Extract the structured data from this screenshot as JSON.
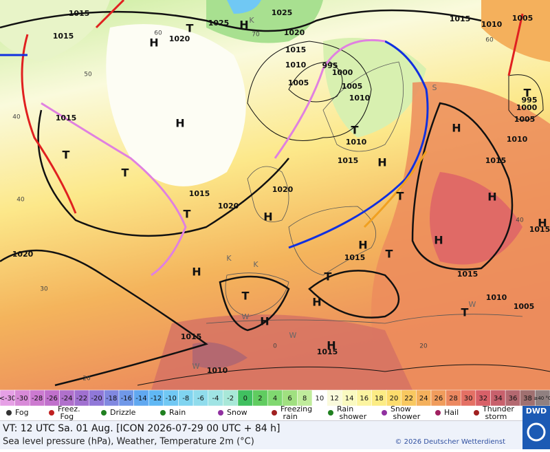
{
  "map": {
    "isobar_labels": [
      1015,
      1015,
      1015,
      1020,
      1025,
      1025,
      1020,
      1020,
      1015,
      1010,
      1005,
      1000,
      1005,
      1010,
      1010,
      1015,
      1020,
      1015,
      1020,
      1015,
      1015,
      1010,
      1005,
      1015,
      1015,
      1010,
      1015,
      1010,
      1005,
      995,
      1000,
      1005,
      1010,
      1015,
      1015,
      995
    ],
    "centers": [
      "H",
      "T",
      "H",
      "H",
      "T",
      "T",
      "T",
      "H",
      "T",
      "H",
      "T",
      "H",
      "H",
      "H",
      "H",
      "T",
      "T",
      "T",
      "H",
      "H",
      "H",
      "H",
      "T",
      "T",
      "H"
    ],
    "latitude_labels": [
      60,
      70,
      50,
      40,
      40,
      30,
      20,
      0,
      20,
      40,
      60
    ],
    "symbols": [
      "K",
      "K",
      "K",
      "W",
      "W",
      "W",
      "W",
      "S"
    ]
  },
  "legend": {
    "scale": [
      {
        "label": "<-30",
        "color": "#e6a0e6"
      },
      {
        "label": "-30",
        "color": "#d88ad8"
      },
      {
        "label": "-28",
        "color": "#cc7ad0"
      },
      {
        "label": "-26",
        "color": "#c070cc"
      },
      {
        "label": "-24",
        "color": "#b070cc"
      },
      {
        "label": "-22",
        "color": "#a070d0"
      },
      {
        "label": "-20",
        "color": "#9078d8"
      },
      {
        "label": "-18",
        "color": "#8088e0"
      },
      {
        "label": "-16",
        "color": "#7098e8"
      },
      {
        "label": "-14",
        "color": "#60a8f0"
      },
      {
        "label": "-12",
        "color": "#60b8f4"
      },
      {
        "label": "-10",
        "color": "#70c8f4"
      },
      {
        "label": "-8",
        "color": "#80d4f0"
      },
      {
        "label": "-6",
        "color": "#90dcec"
      },
      {
        "label": "-4",
        "color": "#a0e4e4"
      },
      {
        "label": "-2",
        "color": "#a8e8d8"
      },
      {
        "label": "0",
        "color": "#40c060"
      },
      {
        "label": "2",
        "color": "#60cc60"
      },
      {
        "label": "4",
        "color": "#80d870"
      },
      {
        "label": "6",
        "color": "#a0e080"
      },
      {
        "label": "8",
        "color": "#c0ec9c"
      },
      {
        "label": "10",
        "color": "#ffffff"
      },
      {
        "label": "12",
        "color": "#fafadc"
      },
      {
        "label": "14",
        "color": "#fafac0"
      },
      {
        "label": "16",
        "color": "#fcf4a0"
      },
      {
        "label": "18",
        "color": "#fcec84"
      },
      {
        "label": "20",
        "color": "#fcdc6c"
      },
      {
        "label": "22",
        "color": "#f8c860"
      },
      {
        "label": "24",
        "color": "#f4b05c"
      },
      {
        "label": "26",
        "color": "#f09c5c"
      },
      {
        "label": "28",
        "color": "#ec8860"
      },
      {
        "label": "30",
        "color": "#e47064"
      },
      {
        "label": "32",
        "color": "#d86068"
      },
      {
        "label": "34",
        "color": "#c8606c"
      },
      {
        "label": "36",
        "color": "#b46870"
      },
      {
        "label": "38",
        "color": "#a07070"
      },
      {
        "label": "≥40 °C",
        "color": "#908080"
      }
    ],
    "weather": [
      "Fog",
      "Freez. Fog",
      "Drizzle",
      "Rain",
      "Snow",
      "Freezing rain",
      "Rain shower",
      "Snow shower",
      "Hail",
      "Thunder storm"
    ]
  },
  "footer": {
    "valid_time": "VT: 12 UTC Sa.  01 Aug. [ICON 2026-07-29  00 UTC + 84 h]",
    "description": "Sea level pressure (hPa), Weather, Temperature 2m (°C)",
    "copyright": "© 2026 Deutscher Wetterdienst",
    "logo": "DWD"
  }
}
